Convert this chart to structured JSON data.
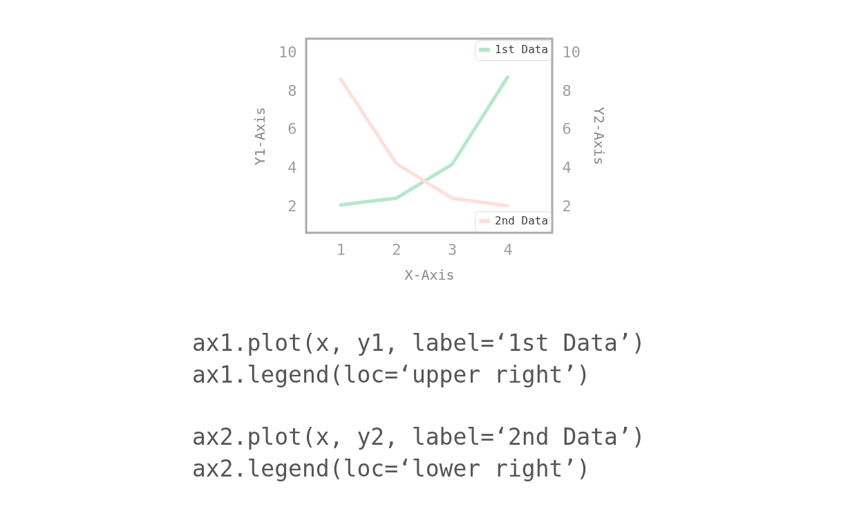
{
  "chart_data": {
    "type": "line",
    "xlabel": "X-Axis",
    "ylabel": "Y1-Axis",
    "y2label": "Y2-Axis",
    "x": [
      1,
      2,
      3,
      4
    ],
    "series": [
      {
        "name": "1st Data",
        "color": "#b5e8cb",
        "values": [
          2.05,
          2.4,
          4.15,
          8.7
        ]
      },
      {
        "name": "2nd Data",
        "color": "#ffdfdb",
        "values": [
          8.6,
          4.2,
          2.4,
          2.0
        ],
        "axis": "y2"
      }
    ],
    "xlim": [
      0.38,
      4.8
    ],
    "xticks": [
      1,
      2,
      3,
      4
    ],
    "ylim": [
      0.6,
      10.7
    ],
    "yticks": [
      2,
      4,
      6,
      8,
      10
    ],
    "y2lim": [
      0.6,
      10.7
    ],
    "y2ticks": [
      2,
      4,
      6,
      8,
      10
    ],
    "grid": false,
    "legend": "right",
    "annotations": [
      "ax1.plot(x, y1, label=‘1st Data’)",
      "ax1.legend(loc=‘upper right’)",
      "ax2.plot(x, y2, label=‘2nd Data’)",
      "ax2.legend(loc=‘lower right’)"
    ]
  }
}
